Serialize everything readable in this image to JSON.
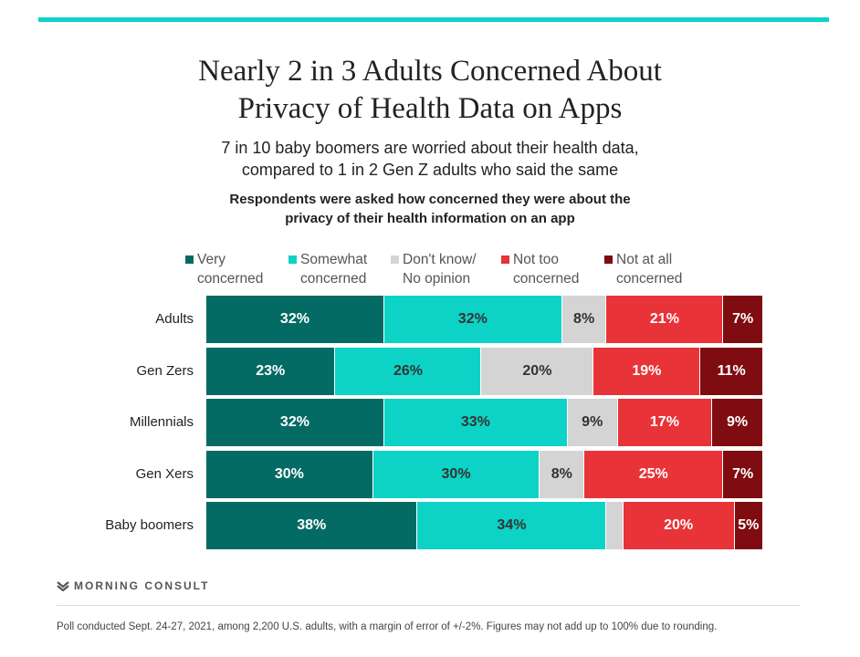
{
  "chart_data": {
    "type": "bar",
    "orientation": "horizontal-stacked-100",
    "title": "Nearly 2 in 3 Adults Concerned About Privacy of Health Data on Apps",
    "subtitle": "7 in 10 baby boomers are worried about their health data, compared to 1 in 2 Gen Z adults who said the same",
    "question": "Respondents were asked how concerned they were about the privacy of their health information on an app",
    "categories": [
      "Adults",
      "Gen Zers",
      "Millennials",
      "Gen Xers",
      "Baby boomers"
    ],
    "series": [
      {
        "name": "Very concerned",
        "line1": "Very",
        "line2": "concerned",
        "color": "#046b64",
        "text_color": "#ffffff",
        "values": [
          32,
          23,
          32,
          30,
          38
        ],
        "labels": [
          "32%",
          "23%",
          "32%",
          "30%",
          "38%"
        ]
      },
      {
        "name": "Somewhat concerned",
        "line1": "Somewhat",
        "line2": "concerned",
        "color": "#0cd3c6",
        "text_color": "#333333",
        "values": [
          32,
          26,
          33,
          30,
          34
        ],
        "labels": [
          "32%",
          "26%",
          "33%",
          "30%",
          "34%"
        ]
      },
      {
        "name": "Don't know/ No opinion",
        "line1": "Don't know/",
        "line2": "No opinion",
        "color": "#d4d4d4",
        "text_color": "#333333",
        "values": [
          8,
          20,
          9,
          8,
          3
        ],
        "labels": [
          "8%",
          "20%",
          "9%",
          "8%",
          ""
        ]
      },
      {
        "name": "Not too concerned",
        "line1": "Not too",
        "line2": "concerned",
        "color": "#e83338",
        "text_color": "#ffffff",
        "values": [
          21,
          19,
          17,
          25,
          20
        ],
        "labels": [
          "21%",
          "19%",
          "17%",
          "25%",
          "20%"
        ]
      },
      {
        "name": "Not at all concerned",
        "line1": "Not at all",
        "line2": "concerned",
        "color": "#7e0c10",
        "text_color": "#ffffff",
        "values": [
          7,
          11,
          9,
          7,
          5
        ],
        "labels": [
          "7%",
          "11%",
          "9%",
          "7%",
          "5%"
        ]
      }
    ],
    "legend_position": "top"
  },
  "brand": "MORNING CONSULT",
  "footnote": "Poll conducted Sept. 24-27, 2021, among 2,200 U.S. adults, with a margin of error of +/-2%. Figures may not add up to 100% due to rounding."
}
